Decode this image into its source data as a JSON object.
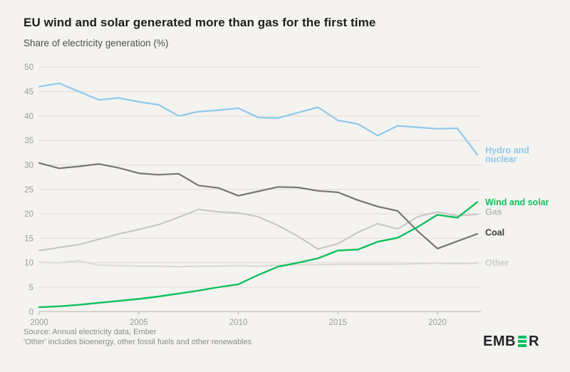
{
  "header": {
    "title": "EU wind and solar generated more than gas for the first time",
    "subtitle": "Share of electricity generation (%)"
  },
  "footer": {
    "source_line1": "Source: Annual electricity data, Ember",
    "source_line2": "'Other' includes bioenergy, other fossil fuels and other renewables"
  },
  "logo": {
    "name": "EMBER",
    "part1": "EMB",
    "part2": "R",
    "accent_color": "#00c05e",
    "text_color": "#242329"
  },
  "colors": {
    "background": "#f4f3f0",
    "gridline": "#dedcd8",
    "axis": "#b8b7b3",
    "tick_text": "#9c9b98"
  },
  "chart_data": {
    "type": "line",
    "title": "EU wind and solar generated more than gas for the first time",
    "ylabel": "Share of electricity generation (%)",
    "xlabel": "",
    "ylim": [
      0,
      50
    ],
    "ytick_step": 5,
    "xticks": [
      2000,
      2005,
      2010,
      2015,
      2020
    ],
    "grid": true,
    "legend_position": "right of line ends",
    "x": [
      2000,
      2001,
      2002,
      2003,
      2004,
      2005,
      2006,
      2007,
      2008,
      2009,
      2010,
      2011,
      2012,
      2013,
      2014,
      2015,
      2016,
      2017,
      2018,
      2019,
      2020,
      2021,
      2022
    ],
    "series": [
      {
        "id": "hydro_nuclear",
        "name": "Hydro and nuclear",
        "label_lines": [
          "Hydro and",
          "nuclear"
        ],
        "color": "#8fc9ec",
        "label_color": "#8fc9ec",
        "values": [
          46.0,
          46.7,
          45.0,
          43.3,
          43.7,
          42.9,
          42.3,
          40.0,
          40.9,
          41.2,
          41.6,
          39.7,
          39.6,
          40.7,
          41.8,
          39.1,
          38.4,
          36.0,
          38.0,
          37.7,
          37.4,
          37.5,
          32.1
        ]
      },
      {
        "id": "wind_solar",
        "name": "Wind and solar",
        "label_lines": [
          "Wind and solar"
        ],
        "color": "#12bf5e",
        "label_color": "#12bf5e",
        "values": [
          0.9,
          1.1,
          1.4,
          1.8,
          2.2,
          2.6,
          3.1,
          3.7,
          4.3,
          5.0,
          5.6,
          7.5,
          9.2,
          10.0,
          10.9,
          12.5,
          12.7,
          14.3,
          15.1,
          17.3,
          19.8,
          19.2,
          22.4
        ]
      },
      {
        "id": "gas",
        "name": "Gas",
        "label_lines": [
          "Gas"
        ],
        "color": "#c6c5c2",
        "label_color": "#bcbbb8",
        "values": [
          12.5,
          13.1,
          13.7,
          14.8,
          15.9,
          16.8,
          17.8,
          19.3,
          20.9,
          20.4,
          20.2,
          19.4,
          17.6,
          15.4,
          12.8,
          13.9,
          16.2,
          18.0,
          16.9,
          19.4,
          20.4,
          19.6,
          19.9
        ]
      },
      {
        "id": "coal",
        "name": "Coal",
        "label_lines": [
          "Coal"
        ],
        "color": "#777672",
        "label_color": "#3e3d3a",
        "values": [
          30.4,
          29.3,
          29.7,
          30.2,
          29.4,
          28.3,
          28.0,
          28.2,
          25.8,
          25.3,
          23.7,
          24.6,
          25.5,
          25.4,
          24.7,
          24.4,
          22.8,
          21.5,
          20.6,
          16.5,
          12.9,
          14.4,
          15.9
        ]
      },
      {
        "id": "other",
        "name": "Other",
        "label_lines": [
          "Other"
        ],
        "color": "#d9d8d4",
        "label_color": "#cfceca",
        "values": [
          10.1,
          10.0,
          10.4,
          9.5,
          9.4,
          9.3,
          9.3,
          9.2,
          9.3,
          9.3,
          9.4,
          9.3,
          9.5,
          9.6,
          9.6,
          9.7,
          9.7,
          9.7,
          9.7,
          9.8,
          9.9,
          9.8,
          9.9
        ]
      }
    ]
  }
}
